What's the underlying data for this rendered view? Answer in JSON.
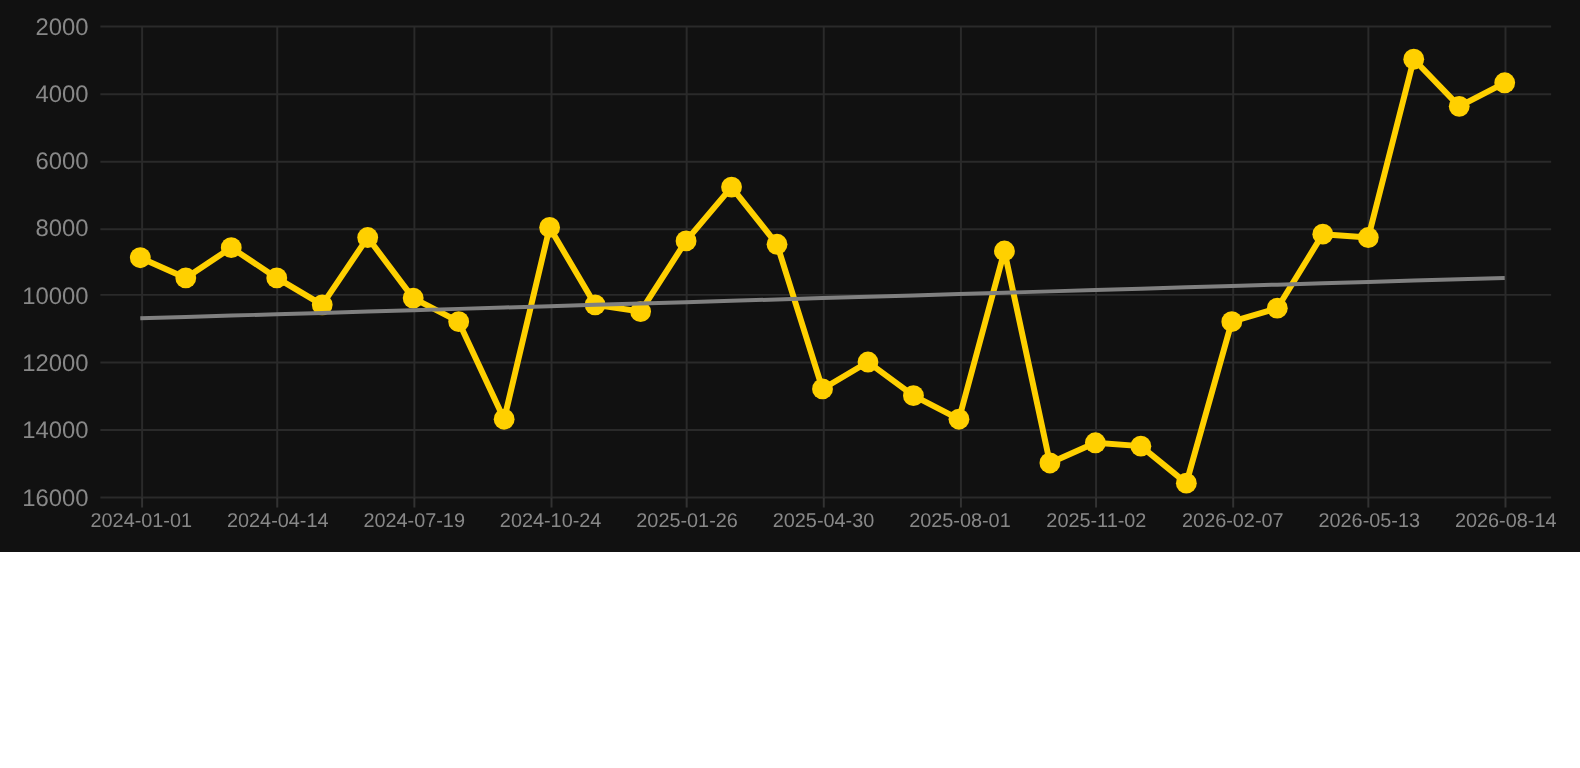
{
  "chart_data": {
    "type": "line",
    "categories": [
      "2024-01-01",
      null,
      null,
      "2024-04-14",
      null,
      null,
      "2024-07-19",
      null,
      null,
      "2024-10-24",
      null,
      null,
      "2025-01-26",
      null,
      null,
      "2025-04-30",
      null,
      null,
      "2025-08-01",
      null,
      null,
      "2025-11-02",
      null,
      null,
      "2026-02-07",
      null,
      null,
      "2026-05-13",
      null,
      null,
      "2026-08-14"
    ],
    "series": [
      {
        "color": "#ffd000",
        "marker": "circle",
        "values": [
          8900,
          9500,
          8600,
          9500,
          10300,
          8300,
          10100,
          10800,
          13700,
          8000,
          10300,
          10500,
          8400,
          6800,
          8500,
          12800,
          12000,
          13000,
          13700,
          8700,
          15000,
          14400,
          14500,
          15600,
          10800,
          10400,
          8200,
          8300,
          3000,
          4400,
          3700
        ]
      },
      {
        "color": "#808080",
        "marker": "none",
        "values": [
          10700,
          10660,
          10620,
          10580,
          10540,
          10500,
          10460,
          10420,
          10380,
          10340,
          10300,
          10260,
          10220,
          10180,
          10140,
          10100,
          10060,
          10020,
          9980,
          9940,
          9900,
          9860,
          9820,
          9780,
          9740,
          9700,
          9660,
          9620,
          9580,
          9540,
          9500
        ]
      }
    ],
    "ylim": [
      16000,
      2000
    ],
    "yticks": [
      2000,
      4000,
      6000,
      8000,
      10000,
      12000,
      14000,
      16000
    ],
    "grid": true,
    "line_style": "solid"
  }
}
